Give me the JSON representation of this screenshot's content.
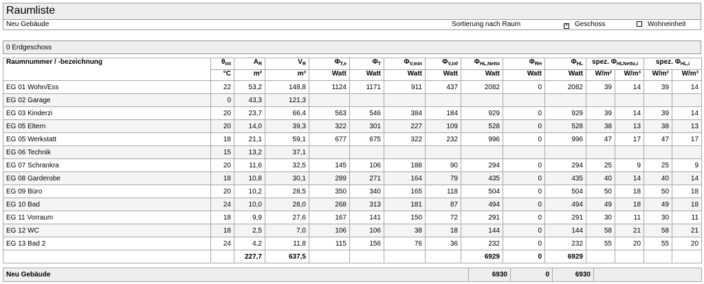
{
  "header": {
    "title": "Raumliste"
  },
  "info": {
    "project": "Neu Gebäude",
    "sort_label": "Sortierung nach Raum",
    "option_geschoss": "Geschoss",
    "option_wohneinheit": "Wohneinheit",
    "geschoss_checked": true,
    "wohneinheit_checked": false
  },
  "floor": {
    "label": "0 Erdgeschoss"
  },
  "table": {
    "columns": {
      "name": "Raumnummer / -bezeichnung",
      "theta_sym": "θ",
      "theta_sub": "int",
      "theta_unit": "°C",
      "a_sym": "A",
      "a_sub": "R",
      "a_unit": "m²",
      "v_sym": "V",
      "v_sub": "R",
      "v_unit": "m³",
      "pte_sym": "Φ",
      "pte_sub": "T,e",
      "pte_unit": "Watt",
      "pt_sym": "Φ",
      "pt_sub": "T",
      "pt_unit": "Watt",
      "pvmin_sym": "Φ",
      "pvmin_sub": "V,min",
      "pvmin_unit": "Watt",
      "pvinf_sym": "Φ",
      "pvinf_sub": "V,inf",
      "pvinf_unit": "Watt",
      "phln_sym": "Φ",
      "phln_sub": "HL,Netto",
      "phln_unit": "Watt",
      "prh_sym": "Φ",
      "prh_sub": "RH",
      "prh_unit": "Watt",
      "phl_sym": "Φ",
      "phl_sub": "HL",
      "phl_unit": "Watt",
      "spez1_pre": "spez. Φ",
      "spez1_sub": "HLNetto,i",
      "spez1_u1": "W/m²",
      "spez1_u2": "W/m³",
      "spez2_pre": "spez. Φ",
      "spez2_sub": "HL,i",
      "spez2_u1": "W/m²",
      "spez2_u2": "W/m³"
    },
    "rows": [
      [
        "EG 01 Wohn/Ess",
        "22",
        "53,2",
        "148,8",
        "1124",
        "1171",
        "911",
        "437",
        "2082",
        "0",
        "2082",
        "39",
        "14",
        "39",
        "14"
      ],
      [
        "EG 02 Garage",
        "0",
        "43,3",
        "121,3",
        "",
        "",
        "",
        "",
        "",
        "",
        "",
        "",
        "",
        "",
        ""
      ],
      [
        "EG 03 Kinderzi",
        "20",
        "23,7",
        "66,4",
        "563",
        "546",
        "384",
        "184",
        "929",
        "0",
        "929",
        "39",
        "14",
        "39",
        "14"
      ],
      [
        "EG 05 Eltern",
        "20",
        "14,0",
        "39,3",
        "322",
        "301",
        "227",
        "109",
        "528",
        "0",
        "528",
        "38",
        "13",
        "38",
        "13"
      ],
      [
        "EG 05 Werkstatt",
        "18",
        "21,1",
        "59,1",
        "677",
        "675",
        "322",
        "232",
        "996",
        "0",
        "996",
        "47",
        "17",
        "47",
        "17"
      ],
      [
        "EG 06 Technik",
        "15",
        "13,2",
        "37,1",
        "",
        "",
        "",
        "",
        "",
        "",
        "",
        "",
        "",
        "",
        ""
      ],
      [
        "EG 07 Schrankra",
        "20",
        "11,6",
        "32,5",
        "145",
        "106",
        "188",
        "90",
        "294",
        "0",
        "294",
        "25",
        "9",
        "25",
        "9"
      ],
      [
        "EG 08 Garderobe",
        "18",
        "10,8",
        "30,1",
        "289",
        "271",
        "164",
        "79",
        "435",
        "0",
        "435",
        "40",
        "14",
        "40",
        "14"
      ],
      [
        "EG 09 Büro",
        "20",
        "10,2",
        "28,5",
        "350",
        "340",
        "165",
        "118",
        "504",
        "0",
        "504",
        "50",
        "18",
        "50",
        "18"
      ],
      [
        "EG 10 Bad",
        "24",
        "10,0",
        "28,0",
        "268",
        "313",
        "181",
        "87",
        "494",
        "0",
        "494",
        "49",
        "18",
        "49",
        "18"
      ],
      [
        "EG 11 Vorraum",
        "18",
        "9,9",
        "27,6",
        "167",
        "141",
        "150",
        "72",
        "291",
        "0",
        "291",
        "30",
        "11",
        "30",
        "11"
      ],
      [
        "EG 12 WC",
        "18",
        "2,5",
        "7,0",
        "106",
        "106",
        "38",
        "18",
        "144",
        "0",
        "144",
        "58",
        "21",
        "58",
        "21"
      ],
      [
        "EG 13 Bad 2",
        "24",
        "4,2",
        "11,8",
        "115",
        "156",
        "76",
        "36",
        "232",
        "0",
        "232",
        "55",
        "20",
        "55",
        "20"
      ]
    ],
    "sum": {
      "a": "227,7",
      "v": "637,5",
      "phln": "6929",
      "prh": "0",
      "phl": "6929"
    }
  },
  "total": {
    "label": "Neu Gebäude",
    "phln": "6930",
    "prh": "0",
    "phl": "6930"
  }
}
